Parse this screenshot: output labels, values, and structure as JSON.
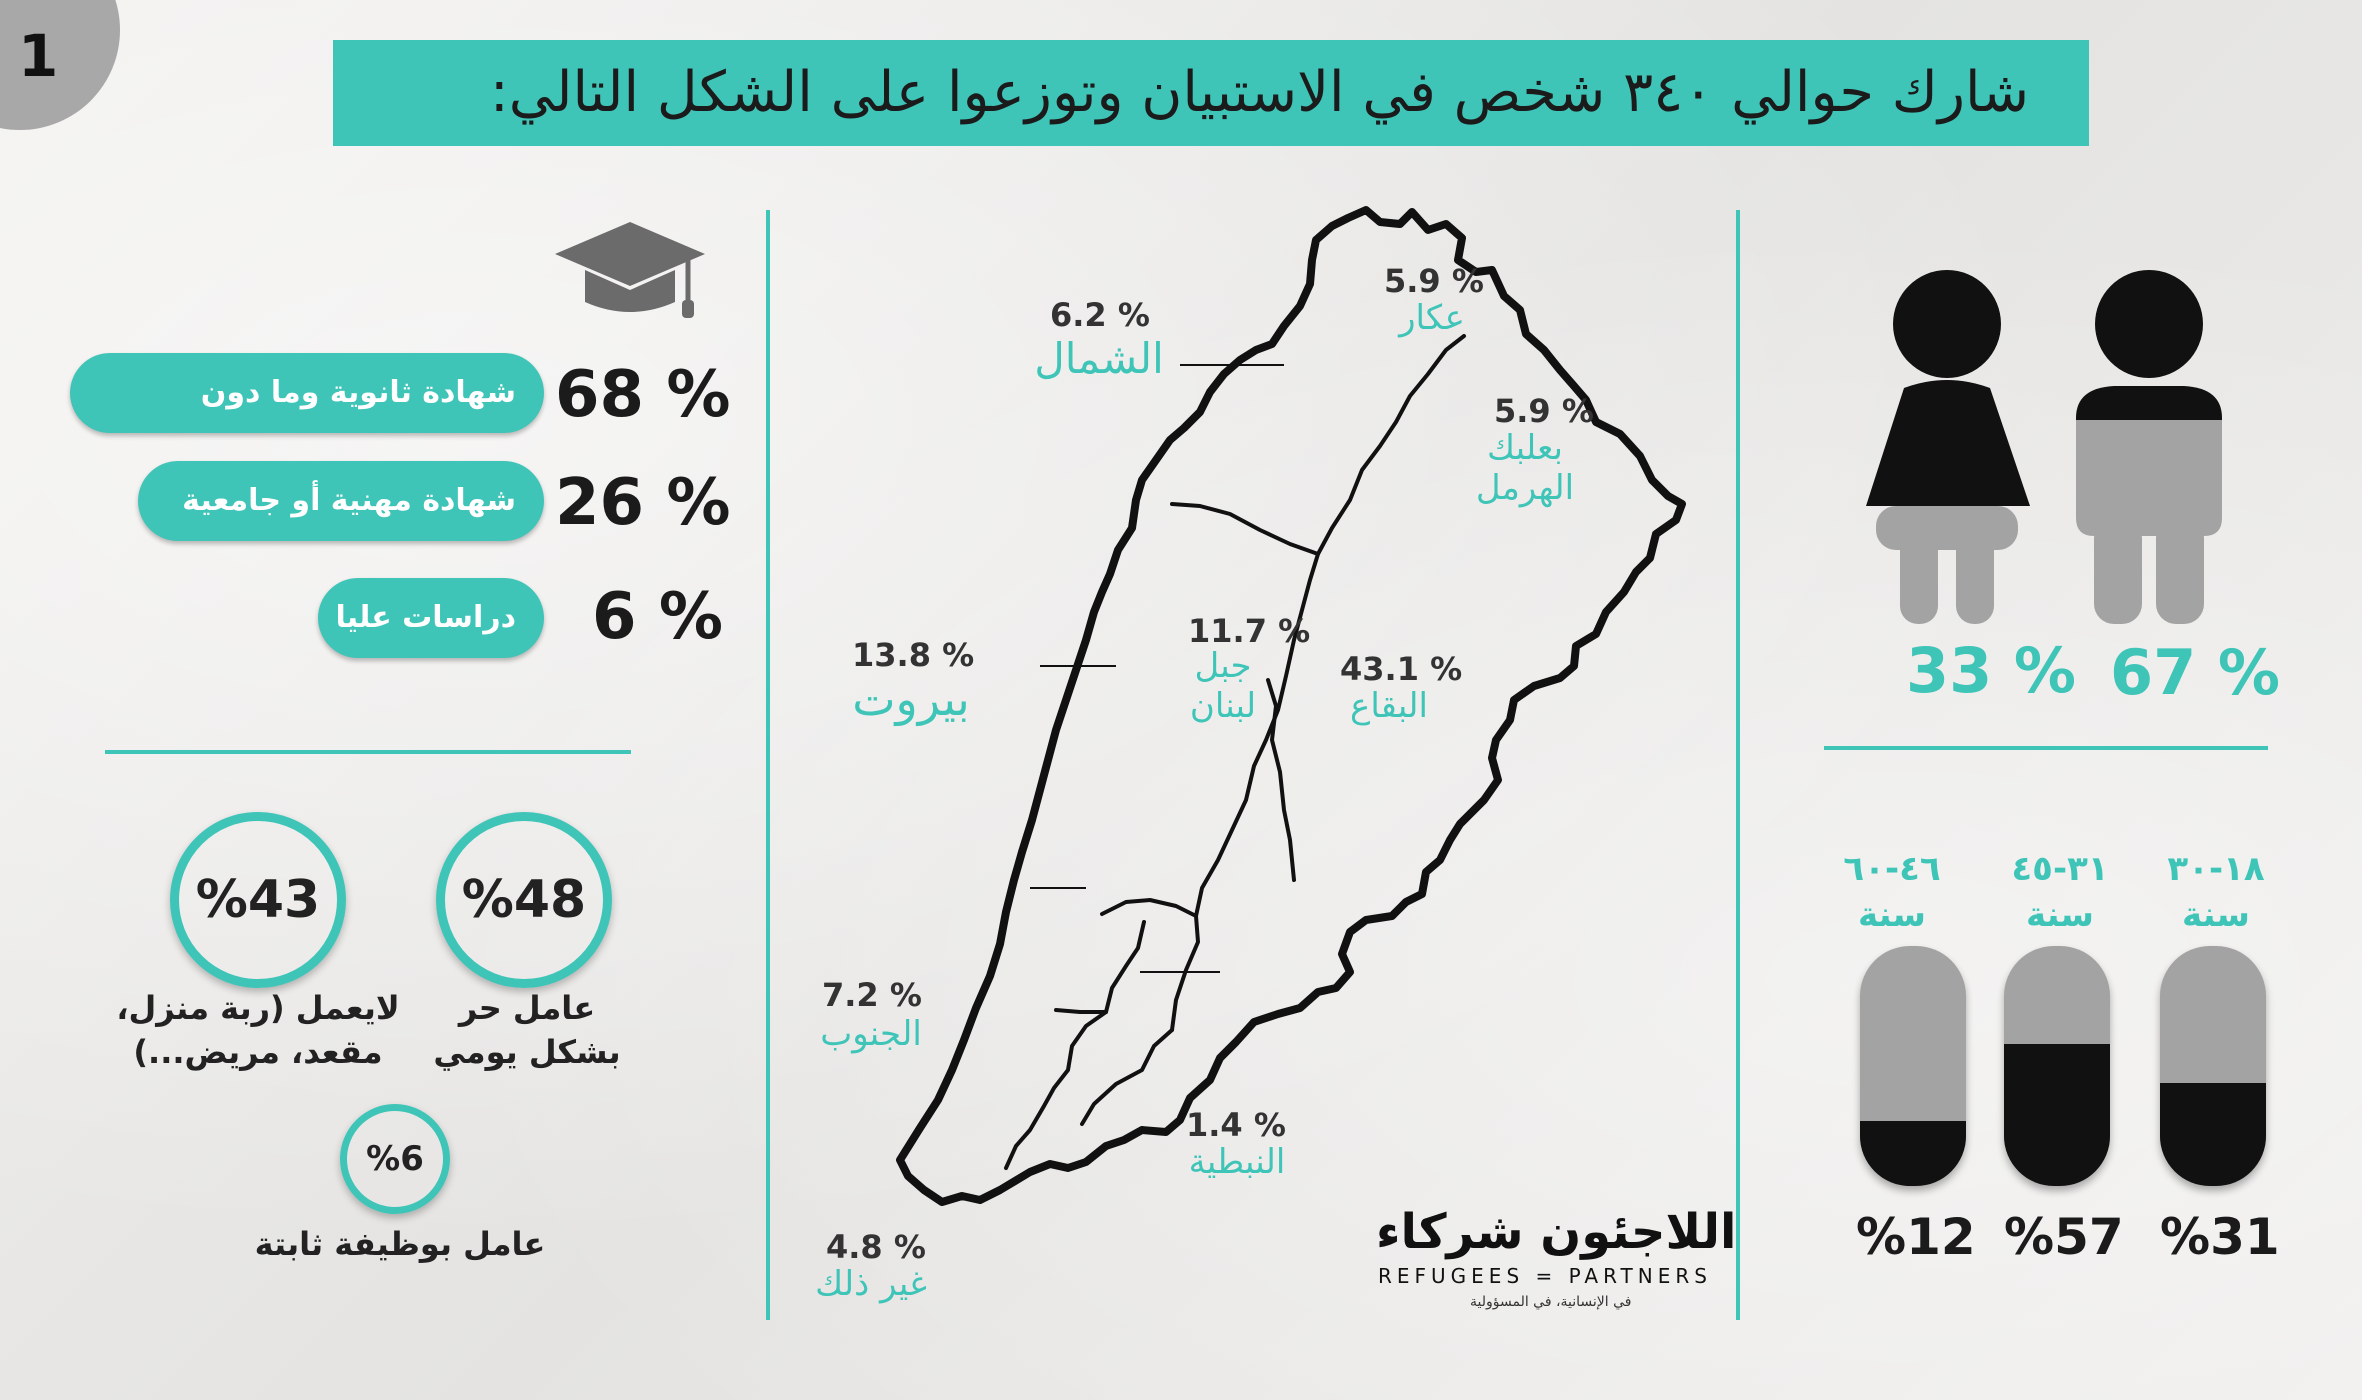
{
  "page_number": "1",
  "title": "شارك حوالي ٣٤٠ شخص في الاستبيان وتوزعوا على الشكل التالي:",
  "education": [
    {
      "pct": "68 %",
      "label": "شهادة ثانوية وما دون"
    },
    {
      "pct": "26 %",
      "label": "شهادة مهنية أو جامعية"
    },
    {
      "pct": "6 %",
      "label": "دراسات عليا"
    }
  ],
  "employment": [
    {
      "value": "%48",
      "label_line1": "عامل حر",
      "label_line2": "بشكل يومي"
    },
    {
      "value": "%43",
      "label_line1": "لايعمل (ربة منزل،",
      "label_line2": "مقعد، مريض...)"
    },
    {
      "value": "%6",
      "label_line1": "عامل بوظيفة ثابتة",
      "label_line2": ""
    }
  ],
  "regions": {
    "akkar": {
      "pct": "5.9 %",
      "name": "عكار"
    },
    "north": {
      "pct": "6.2 %",
      "name": "الشمال"
    },
    "baalbek": {
      "pct": "5.9 %",
      "name_line1": "بعلبك",
      "name_line2": "الهرمل"
    },
    "beirut": {
      "pct": "13.8 %",
      "name": "بيروت"
    },
    "mount_lebanon": {
      "pct": "11.7 %",
      "name_line1": "جبل",
      "name_line2": "لبنان"
    },
    "bekaa": {
      "pct": "43.1 %",
      "name": "البقاع"
    },
    "south": {
      "pct": "7.2 %",
      "name": "الجنوب"
    },
    "nabatieh": {
      "pct": "1.4 %",
      "name": "النبطية"
    },
    "other": {
      "pct": "4.8 %",
      "name": "غير ذلك"
    }
  },
  "gender": {
    "female_pct": "33 %",
    "male_pct": "67 %"
  },
  "age_groups": [
    {
      "label_line1": "٤٦-٦٠",
      "label_line2": "سنة",
      "pct": "%12",
      "fill": 0.27
    },
    {
      "label_line1": "٣١-٤٥",
      "label_line2": "سنة",
      "pct": "%57",
      "fill": 0.59
    },
    {
      "label_line1": "١٨-٣٠",
      "label_line2": "سنة",
      "pct": "%31",
      "fill": 0.43
    }
  ],
  "logo": {
    "arabic": "اللاجئون شركاء",
    "english": "REFUGEES = PARTNERS",
    "tagline": "في الإنسانية، في المسؤولية"
  },
  "colors": {
    "accent": "#3fc4b8",
    "dark": "#111111",
    "grey": "#a3a3a3"
  }
}
